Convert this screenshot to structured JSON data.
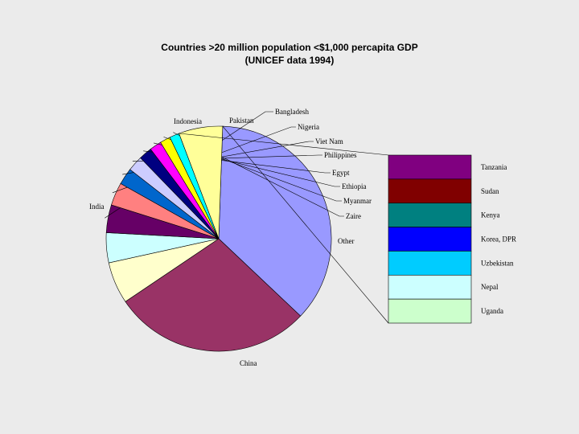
{
  "chart_data": {
    "type": "pie",
    "title": "Countries >20 million population <$1,000 percapita GDP",
    "subtitle": "(UNICEF data 1994)",
    "slices": [
      {
        "label": "China",
        "value": 36.5,
        "color": "#9999ff"
      },
      {
        "label": "India",
        "value": 28.5,
        "color": "#993366"
      },
      {
        "label": "Indonesia",
        "value": 6.0,
        "color": "#ffffcc"
      },
      {
        "label": "Pakistan",
        "value": 4.3,
        "color": "#ccffff"
      },
      {
        "label": "Bangladesh",
        "value": 4.0,
        "color": "#660066"
      },
      {
        "label": "Nigeria",
        "value": 3.3,
        "color": "#ff8080"
      },
      {
        "label": "Viet Nam",
        "value": 2.4,
        "color": "#0066cc"
      },
      {
        "label": "Philippines",
        "value": 2.2,
        "color": "#ccccff"
      },
      {
        "label": "Egypt",
        "value": 1.9,
        "color": "#000080"
      },
      {
        "label": "Ethiopia",
        "value": 1.7,
        "color": "#ff00ff"
      },
      {
        "label": "Myanmar",
        "value": 1.5,
        "color": "#ffff00"
      },
      {
        "label": "Zaire",
        "value": 1.4,
        "color": "#00ffff"
      },
      {
        "label": "Other",
        "value": 6.3,
        "color": "#ffff99"
      }
    ],
    "breakout": {
      "source": "Other",
      "items": [
        {
          "label": "Tanzania",
          "color": "#800080"
        },
        {
          "label": "Sudan",
          "color": "#800000"
        },
        {
          "label": "Kenya",
          "color": "#008080"
        },
        {
          "label": "Korea, DPR",
          "color": "#0000ff"
        },
        {
          "label": "Uzbekistan",
          "color": "#00ccff"
        },
        {
          "label": "Nepal",
          "color": "#ccffff"
        },
        {
          "label": "Uganda",
          "color": "#ccffcc"
        }
      ]
    }
  }
}
